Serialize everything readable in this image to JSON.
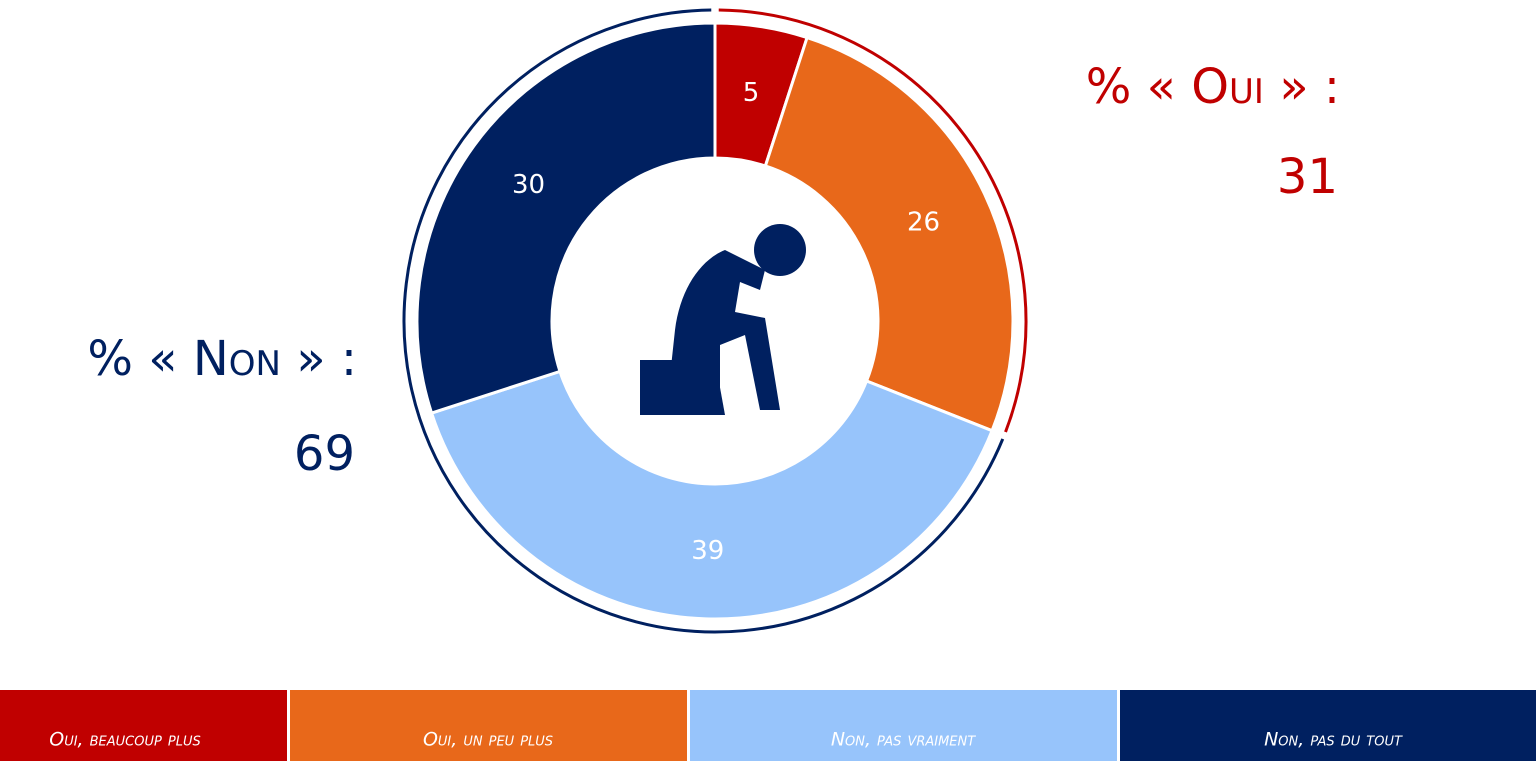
{
  "chart_data": {
    "type": "pie",
    "series": [
      {
        "name": "Oui, beaucoup plus",
        "color": "#c00000",
        "values": [
          5
        ]
      },
      {
        "name": "Oui, un peu plus",
        "color": "#e8681a",
        "values": [
          26
        ]
      },
      {
        "name": "Non, pas vraiment",
        "color": "#97c4fb",
        "values": [
          39
        ]
      },
      {
        "name": "Non, pas du tout",
        "color": "#002060",
        "values": [
          30
        ]
      }
    ],
    "annotations": [
      {
        "text": "% « Oui » :",
        "value": 31,
        "color": "#c00000"
      },
      {
        "text": "% « Non » :",
        "value": 69,
        "color": "#002060"
      }
    ]
  }
}
